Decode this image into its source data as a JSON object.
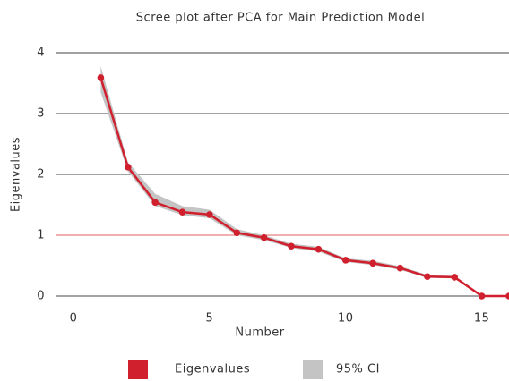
{
  "chart_data": {
    "type": "line",
    "title": "Scree plot after PCA for Main Prediction Model",
    "xlabel": "Number",
    "ylabel": "Eigenvalues",
    "x": [
      1,
      2,
      3,
      4,
      5,
      6,
      7,
      8,
      9,
      10,
      11,
      12,
      13,
      14,
      15,
      16
    ],
    "series": [
      {
        "name": "Eigenvalues",
        "color": "#d0202e",
        "values": [
          3.59,
          2.12,
          1.54,
          1.38,
          1.34,
          1.04,
          0.96,
          0.82,
          0.77,
          0.59,
          0.54,
          0.46,
          0.32,
          0.31,
          0,
          0
        ]
      }
    ],
    "band": {
      "name": "95% CI",
      "color": "#c4c4c4",
      "lower": [
        3.35,
        2.05,
        1.48,
        1.33,
        1.28,
        1.0,
        0.92,
        0.79,
        0.73,
        0.56,
        0.51,
        0.43,
        0.3,
        0.29,
        0,
        0
      ],
      "upper": [
        3.78,
        2.2,
        1.68,
        1.48,
        1.42,
        1.1,
        1.0,
        0.86,
        0.81,
        0.62,
        0.58,
        0.49,
        0.35,
        0.33,
        0,
        0
      ]
    },
    "reference_line": {
      "y": 1,
      "color": "#e06060"
    },
    "xlim": [
      -0.66,
      16
    ],
    "ylim": [
      0,
      4
    ],
    "xticks": [
      0,
      5,
      10,
      15
    ],
    "yticks": [
      0,
      1,
      2,
      3,
      4
    ],
    "grid": true,
    "legend": "bottom"
  }
}
